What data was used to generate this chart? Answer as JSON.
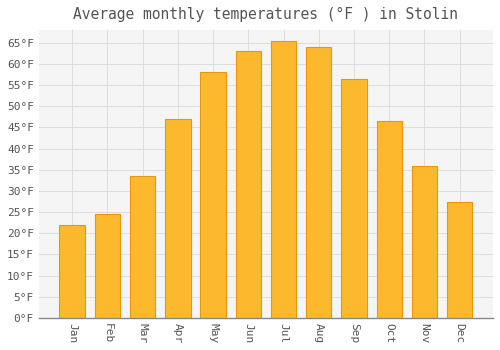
{
  "title": "Average monthly temperatures (°F ) in Stolin",
  "months": [
    "Jan",
    "Feb",
    "Mar",
    "Apr",
    "May",
    "Jun",
    "Jul",
    "Aug",
    "Sep",
    "Oct",
    "Nov",
    "Dec"
  ],
  "values": [
    22,
    24.5,
    33.5,
    47,
    58,
    63,
    65.5,
    64,
    56.5,
    46.5,
    36,
    27.5
  ],
  "bar_color": "#FDB92E",
  "bar_edge_color": "#E8960A",
  "background_color": "#FFFFFF",
  "plot_bg_color": "#F5F5F5",
  "grid_color": "#DDDDDD",
  "text_color": "#555555",
  "ylim": [
    0,
    68
  ],
  "yticks": [
    0,
    5,
    10,
    15,
    20,
    25,
    30,
    35,
    40,
    45,
    50,
    55,
    60,
    65
  ],
  "title_fontsize": 10.5,
  "tick_fontsize": 8,
  "bar_width": 0.72
}
